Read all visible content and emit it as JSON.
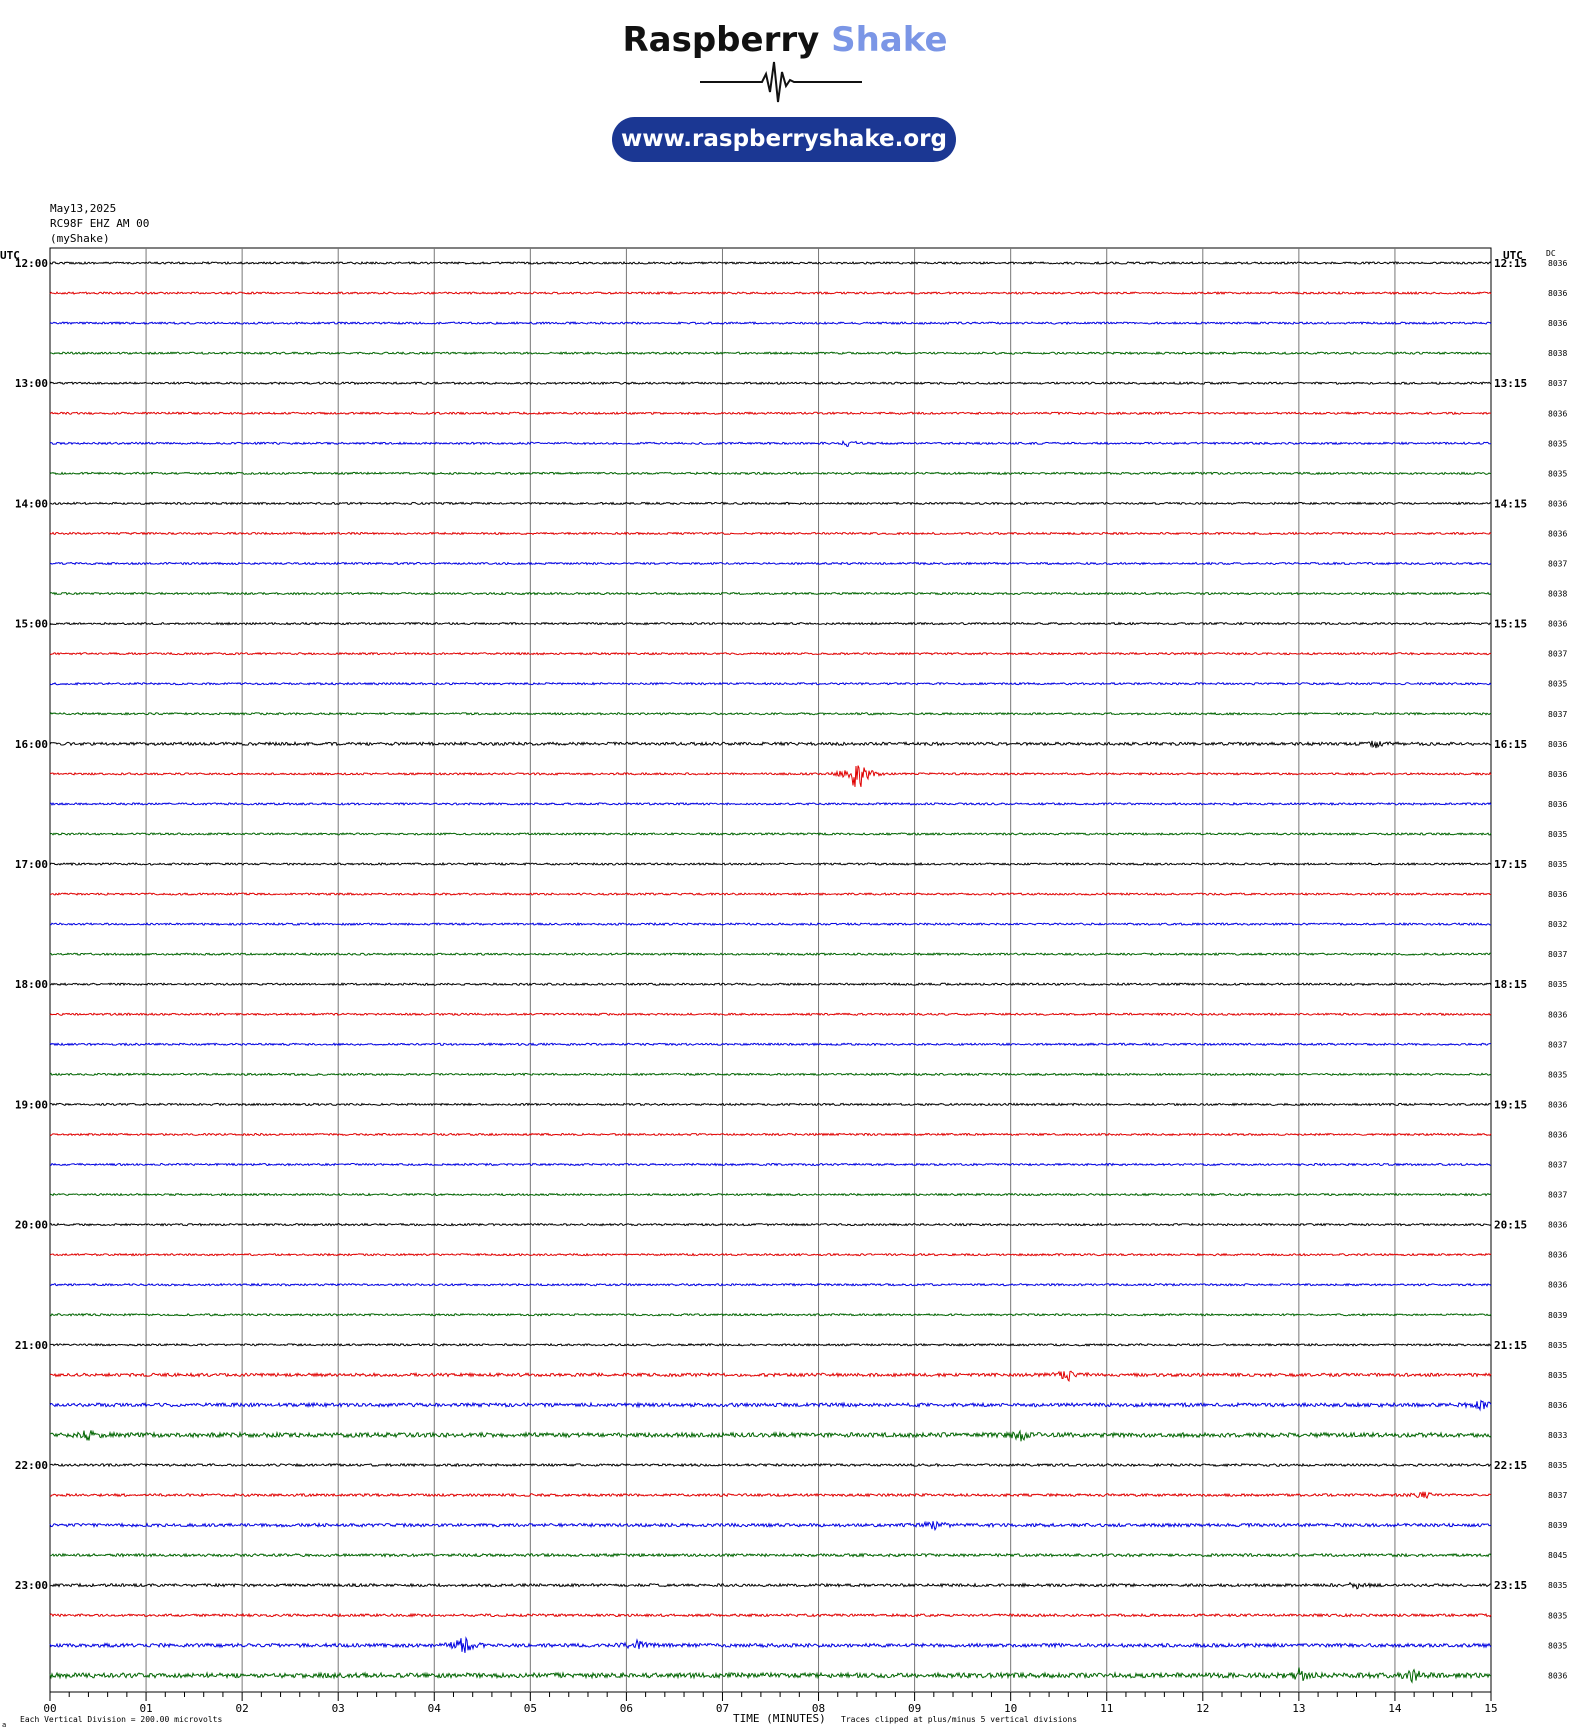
{
  "logo": {
    "title_part1": "Raspberry",
    "title_part2": "Shake",
    "url": "www.raspberryshake.org",
    "colors": {
      "title_dark": "#111111",
      "title_accent": "#7b96e6",
      "url_bg": "#1b3793"
    }
  },
  "header": {
    "date": "May13,2025",
    "station": "RC98F EHZ AM 00",
    "network": "(myShake)"
  },
  "footer": {
    "x_axis_label": "TIME (MINUTES)",
    "scale_note": "Each Vertical Division =  200.00 microvolts",
    "clip_note": "Traces clipped at plus/minus 5 vertical divisions",
    "corner_mark": "a"
  },
  "chart_data": {
    "type": "line",
    "title": "",
    "xlabel": "TIME (MINUTES)",
    "ylabel": "",
    "xlim": [
      0,
      15
    ],
    "x_ticks": [
      "00",
      "01",
      "02",
      "03",
      "04",
      "05",
      "06",
      "07",
      "08",
      "09",
      "10",
      "11",
      "12",
      "13",
      "14",
      "15"
    ],
    "left_axis_title": "UTC",
    "right_axis_title": "UTC",
    "dc_title": "DC",
    "left_hour_labels": [
      "12:00",
      "13:00",
      "14:00",
      "15:00",
      "16:00",
      "17:00",
      "18:00",
      "19:00",
      "20:00",
      "21:00",
      "22:00",
      "23:00"
    ],
    "right_hour_labels": [
      "12:15",
      "13:15",
      "14:15",
      "15:15",
      "16:15",
      "17:15",
      "18:15",
      "19:15",
      "20:15",
      "21:15",
      "22:15",
      "23:15"
    ],
    "trace_colors": [
      "#000000",
      "#e00000",
      "#0000e0",
      "#006400"
    ],
    "dc_offsets": [
      "8036",
      "8036",
      "8036",
      "8038",
      "8037",
      "8036",
      "8035",
      "8035",
      "8036",
      "8036",
      "8037",
      "8038",
      "8036",
      "8037",
      "8035",
      "8037",
      "8036",
      "8036",
      "8036",
      "8035",
      "8035",
      "8036",
      "8032",
      "8037",
      "8035",
      "8036",
      "8037",
      "8035",
      "8036",
      "8036",
      "8037",
      "8037",
      "8036",
      "8036",
      "8036",
      "8039",
      "8035",
      "8035",
      "8036",
      "8033",
      "8035",
      "8037",
      "8039",
      "8045",
      "8035",
      "8035",
      "8035",
      "8036"
    ],
    "noise_level": [
      1,
      1,
      1,
      1,
      1,
      1,
      1,
      1,
      1,
      1,
      1,
      1,
      1,
      1,
      1,
      1,
      1.5,
      1,
      1,
      1,
      1,
      1,
      1,
      1,
      1,
      1,
      1,
      1,
      1,
      1,
      1,
      1,
      1,
      1,
      1,
      1,
      1,
      1.6,
      1.8,
      2.2,
      1.2,
      1.3,
      1.6,
      1.4,
      1.4,
      1.3,
      1.8,
      2.4
    ],
    "events": [
      {
        "trace": 6,
        "minute": 8.3,
        "amplitude": 3
      },
      {
        "trace": 17,
        "minute": 8.4,
        "amplitude": 22
      },
      {
        "trace": 16,
        "minute": 13.8,
        "amplitude": 3
      },
      {
        "trace": 37,
        "minute": 10.6,
        "amplitude": 6
      },
      {
        "trace": 38,
        "minute": 14.9,
        "amplitude": 5
      },
      {
        "trace": 39,
        "minute": 0.4,
        "amplitude": 5
      },
      {
        "trace": 39,
        "minute": 10.1,
        "amplitude": 5
      },
      {
        "trace": 42,
        "minute": 9.2,
        "amplitude": 5
      },
      {
        "trace": 41,
        "minute": 14.3,
        "amplitude": 3
      },
      {
        "trace": 44,
        "minute": 13.6,
        "amplitude": 3
      },
      {
        "trace": 46,
        "minute": 4.3,
        "amplitude": 9
      },
      {
        "trace": 46,
        "minute": 6.1,
        "amplitude": 5
      },
      {
        "trace": 47,
        "minute": 13.0,
        "amplitude": 7
      },
      {
        "trace": 47,
        "minute": 14.2,
        "amplitude": 6
      }
    ]
  }
}
